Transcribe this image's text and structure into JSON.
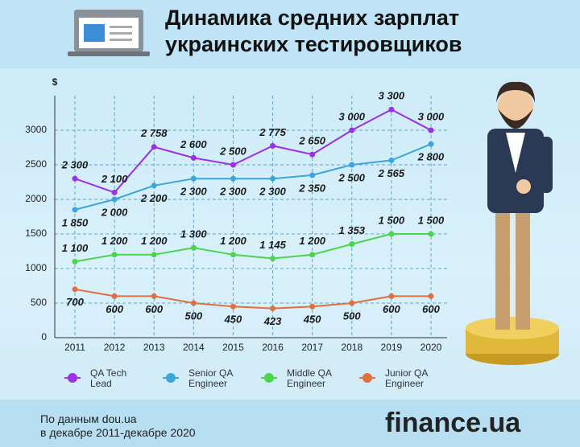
{
  "header": {
    "title": "Динамика средних зарплат украинских тестировщиков"
  },
  "chart_data": {
    "type": "line",
    "y_label": "$",
    "categories": [
      "2011",
      "2012",
      "2013",
      "2014",
      "2015",
      "2016",
      "2017",
      "2018",
      "2019",
      "2020"
    ],
    "ylim": [
      0,
      3500
    ],
    "yticks": [
      0,
      500,
      1000,
      1500,
      2000,
      2500,
      3000
    ],
    "grid": true,
    "series": [
      {
        "name": "QA Tech Lead",
        "color": "#9b30e8",
        "values": [
          2300,
          2100,
          2758,
          2600,
          2500,
          2775,
          2650,
          3000,
          3300,
          3000
        ],
        "value_labels": [
          "2 300",
          "2 100",
          "2 758",
          "2 600",
          "2 500",
          "2 775",
          "2 650",
          "3 000",
          "3 300",
          "3 000"
        ]
      },
      {
        "name": "Senior QA Engineer",
        "color": "#3aa6dc",
        "values": [
          1850,
          2000,
          2200,
          2300,
          2300,
          2300,
          2350,
          2500,
          2565,
          2800
        ],
        "value_labels": [
          "1 850",
          "2 000",
          "2 200",
          "2 300",
          "2 300",
          "2 300",
          "2 350",
          "2 500",
          "2 565",
          "2 800"
        ]
      },
      {
        "name": "Middle QA Engineer",
        "color": "#4cd44c",
        "values": [
          1100,
          1200,
          1200,
          1300,
          1200,
          1145,
          1200,
          1353,
          1500,
          1500
        ],
        "value_labels": [
          "1 100",
          "1 200",
          "1 200",
          "1 300",
          "1 200",
          "1 145",
          "1 200",
          "1 353",
          "1 500",
          "1 500"
        ]
      },
      {
        "name": "Junior QA Engineer",
        "color": "#e07040",
        "values": [
          700,
          600,
          600,
          500,
          450,
          423,
          450,
          500,
          600,
          600
        ],
        "value_labels": [
          "700",
          "600",
          "600",
          "500",
          "450",
          "423",
          "450",
          "500",
          "600",
          "600"
        ]
      }
    ]
  },
  "footer": {
    "source_line1": "По данным dou.ua",
    "source_line2": "в декабре 2011-декабре 2020",
    "logo": "finance.ua"
  }
}
